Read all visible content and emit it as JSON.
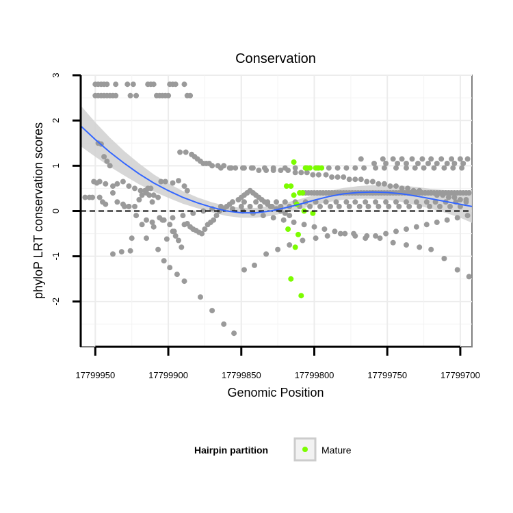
{
  "chart_data": {
    "type": "scatter",
    "title": "Conservation",
    "xlabel": "Genomic Position",
    "ylabel": "phyloP LRT conservation scores",
    "x_reversed": true,
    "xlim": [
      17799960,
      17799692
    ],
    "ylim": [
      -3.0,
      3.0
    ],
    "x_ticks": [
      17799950,
      17799900,
      17799850,
      17799800,
      17799750,
      17799700
    ],
    "x_tick_labels": [
      "17799950",
      "17799900",
      "17799850",
      "17799800",
      "17799750",
      "17799700"
    ],
    "y_ticks": [
      -2,
      -1,
      0,
      1,
      2,
      3
    ],
    "y_tick_labels": [
      "-2",
      "-1",
      "0",
      "1",
      "2",
      "3"
    ],
    "reference_line": {
      "y": 0,
      "style": "dashed"
    },
    "legend": {
      "title": "Hairpin partition",
      "entries": [
        "Mature"
      ],
      "position": "bottom"
    },
    "colors": {
      "other": "#9a9a9a",
      "mature": "#7cfc00",
      "smooth_line": "#3366ff",
      "ribbon": "#d3d3d3"
    },
    "series": [
      {
        "name": "Other",
        "x": [
          17799950,
          17799948,
          17799946,
          17799944,
          17799942,
          17799950,
          17799948,
          17799946,
          17799944,
          17799942,
          17799940,
          17799938,
          17799936,
          17799936,
          17799928,
          17799926,
          17799924,
          17799922,
          17799914,
          17799912,
          17799910,
          17799908,
          17799906,
          17799904,
          17799902,
          17799900,
          17799899,
          17799897,
          17799895,
          17799889,
          17799887,
          17799885,
          17799951,
          17799949,
          17799947,
          17799948,
          17799946,
          17799944,
          17799942,
          17799940,
          17799938,
          17799935,
          17799931,
          17799927,
          17799923,
          17799920,
          17799918,
          17799916,
          17799914,
          17799912,
          17799905,
          17799902,
          17799897,
          17799893,
          17799889,
          17799887,
          17799947,
          17799945,
          17799943,
          17799930,
          17799927,
          17799922,
          17799915,
          17799910,
          17799906,
          17799903,
          17799899,
          17799897,
          17799895,
          17799893,
          17799891,
          17799938,
          17799932,
          17799926,
          17799915,
          17799901,
          17799896,
          17799889,
          17799887,
          17799885,
          17799883,
          17799881,
          17799879,
          17799877,
          17799875,
          17799873,
          17799871,
          17799869,
          17799867,
          17799865,
          17799862,
          17799860,
          17799858,
          17799856,
          17799852,
          17799850,
          17799848,
          17799846,
          17799844,
          17799842,
          17799840,
          17799838,
          17799836,
          17799834,
          17799832,
          17799829,
          17799826,
          17799823,
          17799820,
          17799817,
          17799808,
          17799806,
          17799804,
          17799802,
          17799800,
          17799798,
          17799796,
          17799794,
          17799792,
          17799790,
          17799788,
          17799786,
          17799784,
          17799782,
          17799780,
          17799778,
          17799776,
          17799774,
          17799772,
          17799770,
          17799768,
          17799766,
          17799764,
          17799762,
          17799760,
          17799758,
          17799756,
          17799754,
          17799752,
          17799750,
          17799748,
          17799746,
          17799744,
          17799742,
          17799740,
          17799738,
          17799736,
          17799734,
          17799732,
          17799730,
          17799728,
          17799726,
          17799724,
          17799722,
          17799720,
          17799718,
          17799716,
          17799714,
          17799712,
          17799710,
          17799708,
          17799706,
          17799704,
          17799702,
          17799700,
          17799698,
          17799696,
          17799694,
          17799760,
          17799753,
          17799746,
          17799740,
          17799733,
          17799726,
          17799720,
          17799713,
          17799706,
          17799700,
          17799695,
          17799768,
          17799759,
          17799751,
          17799743,
          17799737,
          17799729,
          17799722,
          17799716,
          17799709,
          17799704,
          17799698,
          17799872,
          17799864,
          17799857,
          17799849,
          17799842,
          17799834,
          17799828,
          17799820,
          17799813,
          17799806,
          17799798,
          17799790,
          17799784,
          17799778,
          17799772,
          17799766,
          17799758,
          17799752,
          17799744,
          17799737,
          17799731,
          17799725,
          17799718,
          17799711,
          17799705,
          17799699,
          17799857,
          17799850,
          17799844,
          17799837,
          17799830,
          17799823,
          17799817,
          17799810,
          17799803,
          17799796,
          17799789,
          17799783,
          17799776,
          17799769,
          17799763,
          17799756,
          17799749,
          17799742,
          17799735,
          17799728,
          17799721,
          17799714,
          17799707,
          17799700,
          17799864,
          17799856,
          17799848,
          17799840,
          17799832,
          17799826,
          17799820,
          17799813,
          17799806,
          17799799,
          17799792,
          17799785,
          17799778,
          17799772,
          17799765,
          17799758,
          17799751,
          17799744,
          17799737,
          17799730,
          17799723,
          17799717,
          17799710,
          17799703,
          17799696,
          17799911,
          17799907,
          17799903,
          17799899,
          17799894,
          17799889,
          17799878,
          17799870,
          17799862,
          17799855,
          17799848,
          17799841,
          17799833,
          17799825,
          17799817,
          17799808,
          17799799,
          17799791,
          17799782,
          17799773,
          17799764,
          17799755,
          17799746,
          17799737,
          17799728,
          17799720,
          17799711,
          17799702,
          17799694,
          17799925,
          17799918,
          17799911,
          17799904,
          17799897,
          17799890,
          17799883,
          17799876,
          17799870,
          17799863,
          17799856,
          17799849,
          17799842,
          17799835,
          17799828,
          17799821,
          17799814,
          17799807,
          17799800,
          17799793,
          17799786,
          17799779,
          17799772,
          17799765,
          17799758,
          17799751,
          17799744,
          17799737,
          17799730,
          17799723,
          17799716,
          17799709,
          17799702,
          17799695,
          17799957,
          17799954,
          17799952,
          17799943,
          17799938,
          17799935,
          17799931,
          17799927,
          17799923,
          17799919,
          17799915,
          17799913,
          17799910,
          17799907,
          17799892,
          17799888,
          17799884,
          17799882,
          17799880,
          17799878,
          17799876,
          17799874,
          17799870,
          17799866,
          17799862,
          17799858,
          17799854,
          17799848,
          17799843,
          17799838,
          17799833,
          17799828,
          17799823,
          17799818,
          17799813,
          17799809,
          17799805,
          17799801,
          17799797,
          17799792,
          17799788,
          17799784,
          17799780,
          17799776,
          17799772,
          17799768,
          17799764,
          17799760,
          17799756,
          17799752,
          17799748,
          17799744,
          17799740,
          17799736,
          17799732,
          17799728,
          17799724,
          17799720,
          17799716,
          17799712,
          17799708,
          17799704,
          17799700,
          17799696
        ],
        "y": [
          2.8,
          2.8,
          2.8,
          2.8,
          2.8,
          2.55,
          2.55,
          2.55,
          2.55,
          2.55,
          2.55,
          2.55,
          2.55,
          2.8,
          2.8,
          2.55,
          2.8,
          2.55,
          2.8,
          2.8,
          2.8,
          2.55,
          2.55,
          2.55,
          2.55,
          2.55,
          2.8,
          2.8,
          2.8,
          2.8,
          2.55,
          2.55,
          0.65,
          0.62,
          0.65,
          1.5,
          1.48,
          1.2,
          1.1,
          1.0,
          0.4,
          0.2,
          0.15,
          0.1,
          0.1,
          0.25,
          0.35,
          0.45,
          0.5,
          0.5,
          0.65,
          0.65,
          0.62,
          0.67,
          0.55,
          0.45,
          0.3,
          0.2,
          0.15,
          0.1,
          0.1,
          -0.1,
          -0.2,
          -0.35,
          -0.15,
          -0.2,
          -0.3,
          -0.45,
          -0.55,
          -0.65,
          -0.8,
          -0.95,
          -0.9,
          -0.88,
          -0.6,
          -0.62,
          -0.45,
          -0.3,
          -0.28,
          -0.35,
          -0.4,
          -0.43,
          -0.47,
          -0.5,
          -0.4,
          -0.3,
          -0.25,
          -0.2,
          -0.1,
          0.0,
          0.05,
          0.1,
          0.15,
          0.2,
          0.25,
          0.3,
          0.35,
          0.4,
          0.45,
          0.4,
          0.35,
          0.3,
          0.25,
          0.2,
          0.15,
          0.1,
          0.05,
          0.0,
          -0.05,
          -0.1,
          0.4,
          0.4,
          0.4,
          0.4,
          0.4,
          0.4,
          0.4,
          0.4,
          0.4,
          0.4,
          0.4,
          0.4,
          0.4,
          0.4,
          0.4,
          0.4,
          0.4,
          0.4,
          0.4,
          0.4,
          0.4,
          0.4,
          0.4,
          0.4,
          0.4,
          0.4,
          0.4,
          0.4,
          0.4,
          0.4,
          0.4,
          0.4,
          0.4,
          0.4,
          0.4,
          0.4,
          0.4,
          0.4,
          0.4,
          0.4,
          0.4,
          0.4,
          0.4,
          0.4,
          0.4,
          0.4,
          0.4,
          0.4,
          0.4,
          0.4,
          0.4,
          0.4,
          0.4,
          0.4,
          0.4,
          0.4,
          0.4,
          0.4,
          0.4,
          1.15,
          1.15,
          1.15,
          1.15,
          1.15,
          1.15,
          1.15,
          1.15,
          1.15,
          1.15,
          1.15,
          1.05,
          1.05,
          1.05,
          1.05,
          1.05,
          1.05,
          1.05,
          1.05,
          1.05,
          1.05,
          1.05,
          0.95,
          0.95,
          0.95,
          0.95,
          0.95,
          0.95,
          0.95,
          0.95,
          0.95,
          0.95,
          0.95,
          0.95,
          0.95,
          0.95,
          0.95,
          0.95,
          0.95,
          0.95,
          0.95,
          0.95,
          0.95,
          0.95,
          0.95,
          0.95,
          0.95,
          0.95,
          0.1,
          0.1,
          0.1,
          0.1,
          0.1,
          0.1,
          0.1,
          0.1,
          0.1,
          0.1,
          0.1,
          0.1,
          0.1,
          0.1,
          0.1,
          0.1,
          0.1,
          0.1,
          0.1,
          0.1,
          0.1,
          0.1,
          0.1,
          0.1,
          0.2,
          0.2,
          0.2,
          0.2,
          0.2,
          0.2,
          0.2,
          0.2,
          0.2,
          0.2,
          0.2,
          0.2,
          0.2,
          0.2,
          0.2,
          0.2,
          0.2,
          0.2,
          0.2,
          0.2,
          0.2,
          0.2,
          0.2,
          0.2,
          0.2,
          -0.85,
          -1.1,
          -1.25,
          -1.4,
          -1.55,
          -1.9,
          -2.2,
          -2.5,
          -2.7,
          -1.3,
          -1.2,
          -0.95,
          -0.85,
          -0.75,
          -0.65,
          -0.6,
          -0.55,
          -0.5,
          -0.5,
          -0.55,
          -0.6,
          -0.7,
          -0.75,
          -0.8,
          -0.85,
          -1.05,
          -1.3,
          -1.45,
          -0.6,
          -0.3,
          -0.25,
          -0.2,
          -0.15,
          -0.1,
          -0.05,
          0.0,
          0.05,
          0.05,
          0.05,
          0.0,
          -0.05,
          -0.1,
          -0.15,
          -0.2,
          -0.25,
          -0.3,
          -0.35,
          -0.4,
          -0.45,
          -0.5,
          -0.55,
          -0.6,
          -0.55,
          -0.5,
          -0.45,
          -0.4,
          -0.35,
          -0.3,
          -0.25,
          -0.2,
          -0.15,
          -0.1,
          0.3,
          0.3,
          0.3,
          0.6,
          0.55,
          0.6,
          0.65,
          0.55,
          0.5,
          0.45,
          0.4,
          0.35,
          0.35,
          0.3,
          1.3,
          1.3,
          1.25,
          1.2,
          1.15,
          1.1,
          1.05,
          1.05,
          1.0,
          1.0,
          1.0,
          0.95,
          0.95,
          0.95,
          0.95,
          0.9,
          0.9,
          0.9,
          0.9,
          0.9,
          0.85,
          0.85,
          0.85,
          0.8,
          0.8,
          0.8,
          0.75,
          0.75,
          0.75,
          0.7,
          0.7,
          0.7,
          0.65,
          0.65,
          0.6,
          0.6,
          0.55,
          0.55,
          0.5,
          0.5,
          0.45,
          0.45,
          0.4,
          0.4,
          0.35,
          0.35,
          0.3,
          0.3,
          0.25,
          0.25
        ]
      },
      {
        "name": "Mature",
        "x": [
          17799819,
          17799816,
          17799814,
          17799812,
          17799810,
          17799808,
          17799806,
          17799818,
          17799816,
          17799814,
          17799813,
          17799811,
          17799809,
          17799807,
          17799805,
          17799803,
          17799801,
          17799799,
          17799797,
          17799795
        ],
        "y": [
          0.55,
          0.55,
          0.35,
          0.15,
          0.4,
          0.4,
          0.95,
          -0.4,
          -1.5,
          1.08,
          -0.8,
          -0.52,
          -1.87,
          0.0,
          0.95,
          0.95,
          -0.05,
          0.95,
          0.95,
          0.95
        ]
      }
    ],
    "smooth": {
      "x": [
        17799960,
        17799950,
        17799940,
        17799930,
        17799920,
        17799910,
        17799900,
        17799890,
        17799880,
        17799870,
        17799860,
        17799850,
        17799840,
        17799830,
        17799820,
        17799810,
        17799800,
        17799790,
        17799780,
        17799770,
        17799760,
        17799750,
        17799740,
        17799730,
        17799720,
        17799710,
        17799700,
        17799692
      ],
      "y": [
        1.88,
        1.58,
        1.3,
        1.05,
        0.82,
        0.62,
        0.45,
        0.3,
        0.18,
        0.08,
        0.0,
        -0.04,
        -0.04,
        0.0,
        0.07,
        0.15,
        0.24,
        0.32,
        0.38,
        0.41,
        0.42,
        0.41,
        0.38,
        0.33,
        0.27,
        0.21,
        0.15,
        0.1
      ],
      "se": [
        0.45,
        0.38,
        0.32,
        0.27,
        0.23,
        0.19,
        0.16,
        0.14,
        0.12,
        0.11,
        0.11,
        0.11,
        0.11,
        0.11,
        0.11,
        0.11,
        0.11,
        0.12,
        0.13,
        0.14,
        0.15,
        0.16,
        0.18,
        0.2,
        0.22,
        0.25,
        0.3,
        0.36
      ]
    }
  }
}
